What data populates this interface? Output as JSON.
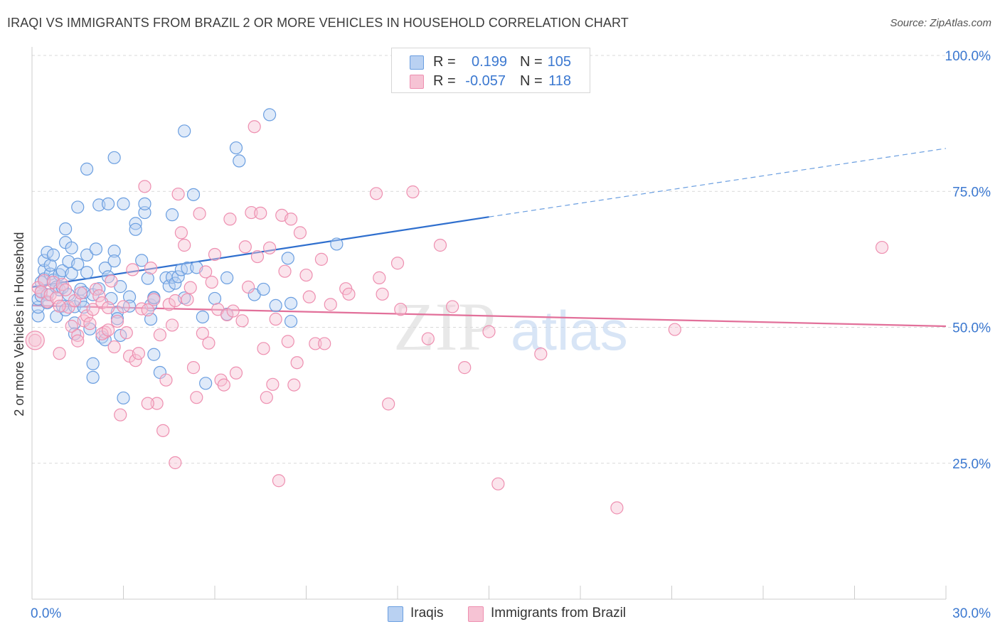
{
  "header": {
    "title": "IRAQI VS IMMIGRANTS FROM BRAZIL 2 OR MORE VEHICLES IN HOUSEHOLD CORRELATION CHART",
    "source": "Source: ZipAtlas.com"
  },
  "legend": {
    "r_label": "R =",
    "n_label": "N =",
    "rows": [
      {
        "name": "Iraqis",
        "r": "0.199",
        "n": "105",
        "color": "#6a9ee0",
        "fill": "#b9d1f2"
      },
      {
        "name": "Immigrants from Brazil",
        "r": "-0.057",
        "n": "118",
        "color": "#ee8fb0",
        "fill": "#f6c3d4"
      }
    ]
  },
  "watermark": {
    "zip": "ZIP",
    "atlas": "atlas"
  },
  "chart_data": {
    "type": "scatter",
    "title": "IRAQI VS IMMIGRANTS FROM BRAZIL 2 OR MORE VEHICLES IN HOUSEHOLD CORRELATION CHART",
    "xlabel": "",
    "ylabel": "2 or more Vehicles in Household",
    "xlim": [
      0,
      30
    ],
    "ylim": [
      0,
      100
    ],
    "x_tick_labels": [
      "0.0%",
      "30.0%"
    ],
    "y_ticks": [
      25,
      50,
      75,
      100
    ],
    "y_tick_labels": [
      "25.0%",
      "50.0%",
      "75.0%",
      "100.0%"
    ],
    "grid": true,
    "series": [
      {
        "name": "Iraqis",
        "color": "#6a9ee0",
        "trend": {
          "x": [
            0,
            15
          ],
          "y": [
            57.4,
            70.3
          ],
          "dashed_to": [
            30,
            82.9
          ]
        },
        "points": [
          [
            0.2,
            52.1
          ],
          [
            0.2,
            53.7
          ],
          [
            0.2,
            55.2
          ],
          [
            0.3,
            55.8
          ],
          [
            0.3,
            56.6
          ],
          [
            0.3,
            58.3
          ],
          [
            0.4,
            60.5
          ],
          [
            0.4,
            62.3
          ],
          [
            0.4,
            58.9
          ],
          [
            0.5,
            63.8
          ],
          [
            0.5,
            56.0
          ],
          [
            0.5,
            54.5
          ],
          [
            0.6,
            59.8
          ],
          [
            0.6,
            61.4
          ],
          [
            0.7,
            63.3
          ],
          [
            0.7,
            58.7
          ],
          [
            0.8,
            57.4
          ],
          [
            0.8,
            52.0
          ],
          [
            0.9,
            59.7
          ],
          [
            0.9,
            56.9
          ],
          [
            1.0,
            53.9
          ],
          [
            1.0,
            57.3
          ],
          [
            1.0,
            60.4
          ],
          [
            1.1,
            65.6
          ],
          [
            1.1,
            68.1
          ],
          [
            1.1,
            53.2
          ],
          [
            1.2,
            62.1
          ],
          [
            1.2,
            56.0
          ],
          [
            1.3,
            64.6
          ],
          [
            1.3,
            59.9
          ],
          [
            1.4,
            53.8
          ],
          [
            1.4,
            50.8
          ],
          [
            1.4,
            48.8
          ],
          [
            1.5,
            72.1
          ],
          [
            1.5,
            61.6
          ],
          [
            1.6,
            57.0
          ],
          [
            1.6,
            54.8
          ],
          [
            1.7,
            56.4
          ],
          [
            1.7,
            53.7
          ],
          [
            1.8,
            79.1
          ],
          [
            1.8,
            63.3
          ],
          [
            1.8,
            60.1
          ],
          [
            1.9,
            49.7
          ],
          [
            2.0,
            56.0
          ],
          [
            2.0,
            43.3
          ],
          [
            2.1,
            64.4
          ],
          [
            2.2,
            72.5
          ],
          [
            2.2,
            57.1
          ],
          [
            2.3,
            48.2
          ],
          [
            2.4,
            47.7
          ],
          [
            2.4,
            60.9
          ],
          [
            2.5,
            72.7
          ],
          [
            2.5,
            59.3
          ],
          [
            2.6,
            55.3
          ],
          [
            2.7,
            64.0
          ],
          [
            2.7,
            81.2
          ],
          [
            2.7,
            62.2
          ],
          [
            2.8,
            52.8
          ],
          [
            2.8,
            51.6
          ],
          [
            2.9,
            57.5
          ],
          [
            2.9,
            48.5
          ],
          [
            3.0,
            72.7
          ],
          [
            3.0,
            37.0
          ],
          [
            3.2,
            55.6
          ],
          [
            3.2,
            53.9
          ],
          [
            3.4,
            69.1
          ],
          [
            3.4,
            68.0
          ],
          [
            3.6,
            62.3
          ],
          [
            3.7,
            71.1
          ],
          [
            3.7,
            72.7
          ],
          [
            3.9,
            54.1
          ],
          [
            3.9,
            51.5
          ],
          [
            3.8,
            59.0
          ],
          [
            4.0,
            45.0
          ],
          [
            4.0,
            55.5
          ],
          [
            4.2,
            41.7
          ],
          [
            4.4,
            59.1
          ],
          [
            4.5,
            57.6
          ],
          [
            4.6,
            70.7
          ],
          [
            4.6,
            59.2
          ],
          [
            4.7,
            58.1
          ],
          [
            4.8,
            59.3
          ],
          [
            4.9,
            60.6
          ],
          [
            5.0,
            86.1
          ],
          [
            5.1,
            60.9
          ],
          [
            5.3,
            74.4
          ],
          [
            5.4,
            61.0
          ],
          [
            5.6,
            51.9
          ],
          [
            5.7,
            39.7
          ],
          [
            6.0,
            55.3
          ],
          [
            6.4,
            59.1
          ],
          [
            6.4,
            52.4
          ],
          [
            6.7,
            83.0
          ],
          [
            6.8,
            80.6
          ],
          [
            7.3,
            56.0
          ],
          [
            7.6,
            57.0
          ],
          [
            7.8,
            89.1
          ],
          [
            8.0,
            54.0
          ],
          [
            8.4,
            62.7
          ],
          [
            8.5,
            51.1
          ],
          [
            8.5,
            54.4
          ],
          [
            10.0,
            65.3
          ],
          [
            4.0,
            55.4
          ],
          [
            2.0,
            40.8
          ],
          [
            5.0,
            55.4
          ]
        ]
      },
      {
        "name": "Immigrants from Brazil",
        "color": "#ee8fb0",
        "trend": {
          "x": [
            0,
            30
          ],
          "y": [
            54.0,
            50.2
          ]
        },
        "points": [
          [
            0.1,
            47.6
          ],
          [
            0.2,
            57.3
          ],
          [
            0.3,
            56.5
          ],
          [
            0.4,
            58.6
          ],
          [
            0.5,
            54.7
          ],
          [
            0.6,
            56.0
          ],
          [
            0.7,
            58.3
          ],
          [
            0.8,
            55.4
          ],
          [
            0.9,
            45.2
          ],
          [
            1.0,
            57.9
          ],
          [
            1.1,
            56.9
          ],
          [
            1.2,
            53.7
          ],
          [
            1.3,
            50.2
          ],
          [
            1.4,
            54.9
          ],
          [
            1.5,
            48.5
          ],
          [
            1.6,
            56.3
          ],
          [
            1.7,
            51.2
          ],
          [
            1.8,
            52.1
          ],
          [
            1.9,
            50.7
          ],
          [
            2.0,
            53.3
          ],
          [
            2.1,
            57.0
          ],
          [
            2.2,
            55.8
          ],
          [
            2.3,
            54.5
          ],
          [
            2.4,
            49.1
          ],
          [
            2.5,
            53.6
          ],
          [
            2.6,
            58.5
          ],
          [
            2.7,
            46.4
          ],
          [
            2.8,
            51.1
          ],
          [
            2.9,
            33.9
          ],
          [
            3.0,
            53.8
          ],
          [
            3.1,
            49.0
          ],
          [
            3.2,
            44.7
          ],
          [
            3.3,
            60.6
          ],
          [
            3.4,
            43.9
          ],
          [
            3.5,
            45.2
          ],
          [
            3.6,
            53.4
          ],
          [
            3.7,
            75.9
          ],
          [
            3.8,
            53.2
          ],
          [
            3.9,
            60.9
          ],
          [
            4.0,
            55.1
          ],
          [
            4.1,
            36.0
          ],
          [
            4.2,
            48.6
          ],
          [
            4.3,
            31.0
          ],
          [
            4.4,
            40.3
          ],
          [
            4.5,
            54.2
          ],
          [
            4.6,
            50.4
          ],
          [
            4.7,
            25.1
          ],
          [
            4.8,
            74.5
          ],
          [
            4.9,
            67.4
          ],
          [
            5.0,
            65.1
          ],
          [
            5.1,
            55.1
          ],
          [
            5.2,
            57.3
          ],
          [
            5.3,
            42.6
          ],
          [
            5.4,
            37.1
          ],
          [
            5.5,
            70.9
          ],
          [
            5.6,
            48.9
          ],
          [
            5.7,
            60.2
          ],
          [
            5.8,
            47.1
          ],
          [
            5.9,
            58.3
          ],
          [
            6.0,
            63.4
          ],
          [
            6.1,
            53.3
          ],
          [
            6.2,
            40.3
          ],
          [
            6.3,
            39.4
          ],
          [
            6.4,
            52.3
          ],
          [
            6.5,
            69.9
          ],
          [
            6.6,
            53.0
          ],
          [
            6.7,
            41.6
          ],
          [
            6.9,
            51.2
          ],
          [
            7.0,
            64.8
          ],
          [
            7.1,
            57.4
          ],
          [
            7.2,
            71.1
          ],
          [
            7.3,
            86.9
          ],
          [
            7.4,
            63.0
          ],
          [
            7.5,
            71.0
          ],
          [
            7.6,
            46.1
          ],
          [
            7.7,
            37.1
          ],
          [
            7.8,
            64.6
          ],
          [
            7.9,
            39.5
          ],
          [
            8.0,
            51.5
          ],
          [
            8.1,
            21.8
          ],
          [
            8.2,
            70.6
          ],
          [
            8.3,
            60.3
          ],
          [
            8.4,
            47.4
          ],
          [
            8.5,
            69.9
          ],
          [
            8.6,
            39.4
          ],
          [
            8.7,
            43.5
          ],
          [
            8.8,
            67.4
          ],
          [
            9.0,
            59.6
          ],
          [
            9.1,
            55.6
          ],
          [
            9.3,
            47.0
          ],
          [
            9.5,
            62.5
          ],
          [
            9.6,
            47.0
          ],
          [
            9.8,
            54.2
          ],
          [
            10.3,
            57.1
          ],
          [
            10.4,
            56.1
          ],
          [
            11.3,
            74.6
          ],
          [
            11.4,
            59.1
          ],
          [
            11.5,
            56.1
          ],
          [
            11.7,
            35.9
          ],
          [
            12.0,
            61.8
          ],
          [
            12.1,
            53.3
          ],
          [
            12.5,
            74.9
          ],
          [
            13.0,
            47.9
          ],
          [
            13.4,
            65.1
          ],
          [
            13.8,
            53.8
          ],
          [
            14.2,
            42.6
          ],
          [
            15.0,
            49.2
          ],
          [
            15.3,
            21.2
          ],
          [
            16.7,
            45.1
          ],
          [
            19.2,
            16.8
          ],
          [
            21.1,
            49.6
          ],
          [
            27.9,
            64.7
          ],
          [
            1.5,
            47.5
          ],
          [
            2.3,
            48.8
          ],
          [
            3.8,
            36.0
          ],
          [
            0.9,
            53.9
          ],
          [
            4.7,
            54.9
          ],
          [
            2.5,
            49.5
          ]
        ]
      }
    ]
  }
}
